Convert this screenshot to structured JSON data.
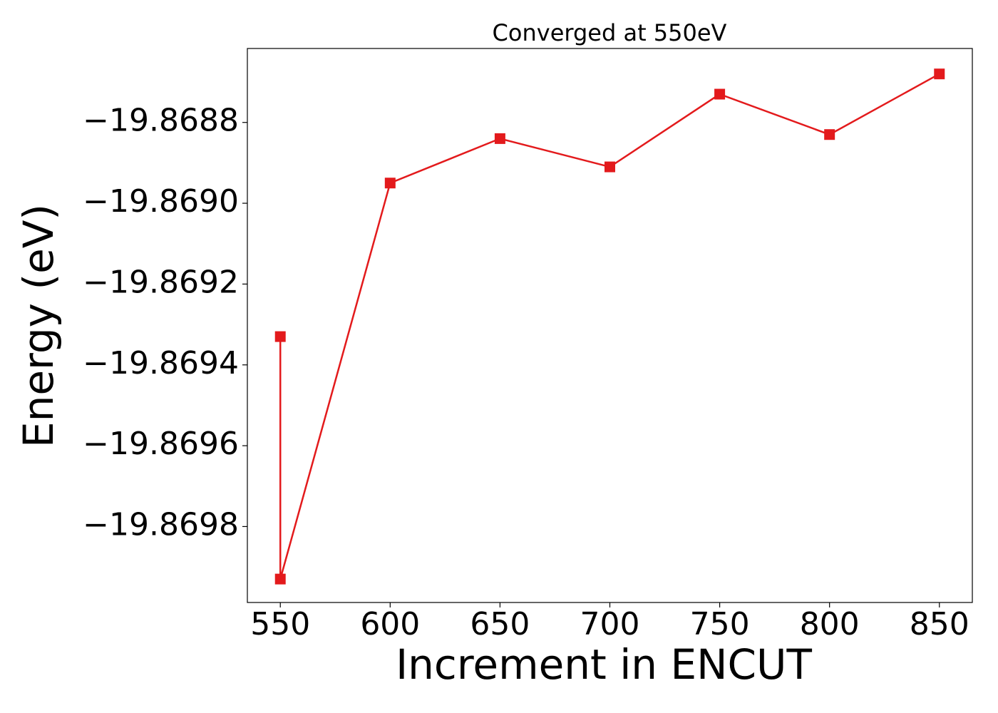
{
  "chart_data": {
    "type": "line",
    "title": "Converged at 550eV",
    "x_label": "Increment in ENCUT",
    "y_label": "Energy (eV)",
    "x": [
      550,
      550,
      600,
      650,
      700,
      750,
      800,
      850
    ],
    "series": [
      {
        "name": "Energy",
        "color": "#e31a1c",
        "values": [
          -19.86933,
          -19.86993,
          -19.86895,
          -19.86884,
          -19.86891,
          -19.86873,
          -19.86883,
          -19.86868
        ]
      }
    ],
    "xlim": [
      535,
      865
    ],
    "xticks": [
      550,
      600,
      650,
      700,
      750,
      800,
      850
    ],
    "ylim": [
      -19.869988,
      -19.868617
    ],
    "yticks": [
      {
        "value": -19.8688,
        "label": "−19.8688"
      },
      {
        "value": -19.869,
        "label": "−19.8690"
      },
      {
        "value": -19.8692,
        "label": "−19.8692"
      },
      {
        "value": -19.8694,
        "label": "−19.8694"
      },
      {
        "value": -19.8696,
        "label": "−19.8696"
      },
      {
        "value": -19.8698,
        "label": "−19.8698"
      }
    ],
    "grid": false
  }
}
